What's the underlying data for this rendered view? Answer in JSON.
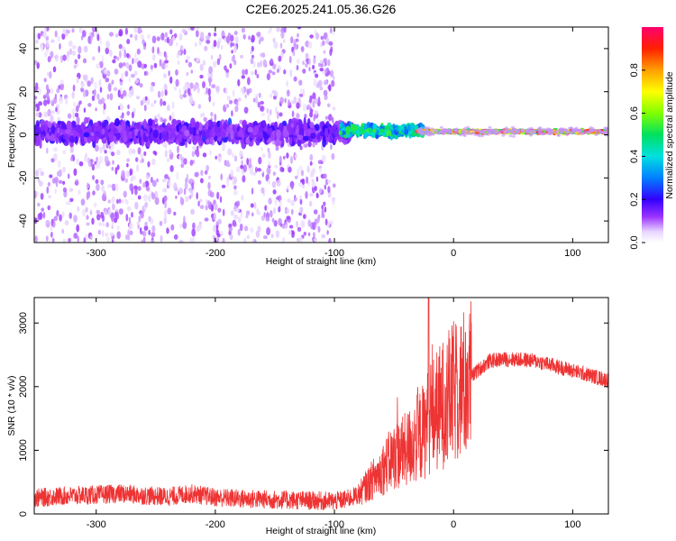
{
  "title": "C2E6.2025.241.05.36.G26",
  "chart_data": [
    {
      "type": "heatmap",
      "name": "spectrogram",
      "xlabel": "Height of straight line (km)",
      "ylabel": "Frequency (Hz)",
      "xlim": [
        -352,
        130
      ],
      "ylim": [
        -50,
        50
      ],
      "xticks": [
        -300,
        -200,
        -100,
        0,
        100
      ],
      "yticks": [
        -40,
        -20,
        0,
        20,
        40
      ],
      "colorbar": {
        "label": "Normalized spectral amplitude",
        "range": [
          0,
          1
        ],
        "ticks": [
          0.0,
          0.2,
          0.4,
          0.6,
          0.8
        ],
        "tick_labels": [
          "0.0",
          "0.2",
          "0.4",
          "0.6",
          "0.8"
        ]
      },
      "regions": [
        {
          "x_range": [
            -352,
            -100
          ],
          "description_value": "scattered low-amplitude noise over full frequency range, band near 0 Hz amplitude ~0.1-0.2"
        },
        {
          "x_range": [
            -100,
            -30
          ],
          "description_value": "noisy band near 0 Hz amplitude ~0.3-0.5"
        },
        {
          "x_range": [
            -30,
            130
          ],
          "description_value": "narrow line near 2 Hz amplitude ~0.5-1.0"
        }
      ]
    },
    {
      "type": "line",
      "name": "snr",
      "xlabel": "Height of straight line (km)",
      "ylabel": "SNR (10 * v/v)",
      "xlim": [
        -352,
        130
      ],
      "ylim": [
        0,
        3400
      ],
      "xticks": [
        -300,
        -200,
        -100,
        0,
        100
      ],
      "yticks": [
        0,
        1000,
        2000,
        3000
      ],
      "color": "#ee3333",
      "series": [
        {
          "name": "SNR",
          "x": [
            -352,
            -330,
            -300,
            -280,
            -260,
            -240,
            -220,
            -200,
            -180,
            -160,
            -140,
            -120,
            -100,
            -90,
            -80,
            -70,
            -60,
            -50,
            -40,
            -30,
            -25,
            -20,
            -10,
            0,
            10,
            20,
            30,
            40,
            50,
            60,
            70,
            80,
            90,
            100,
            110,
            120,
            130
          ],
          "y": [
            250,
            280,
            300,
            320,
            290,
            270,
            320,
            260,
            240,
            230,
            220,
            210,
            200,
            230,
            300,
            500,
            700,
            900,
            1000,
            1200,
            1300,
            1500,
            1700,
            1900,
            2050,
            2250,
            2400,
            2430,
            2430,
            2420,
            2400,
            2350,
            2300,
            2250,
            2200,
            2150,
            2100
          ]
        }
      ]
    }
  ]
}
